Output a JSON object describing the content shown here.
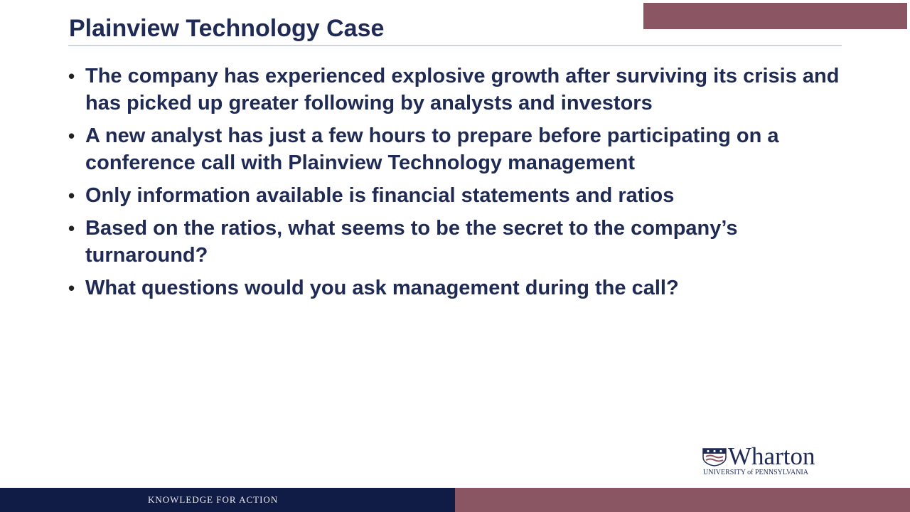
{
  "slide": {
    "title": "Plainview Technology Case",
    "bullets": [
      "The company has experienced explosive growth after surviving its crisis and has picked up greater following by analysts and investors",
      "A new analyst has just a few hours to prepare before participating on a conference call with Plainview Technology management",
      "Only information available is financial statements and ratios",
      "Based on the ratios, what seems to be the secret to the company’s turnaround?",
      "What questions would you ask management during the call?"
    ]
  },
  "logo": {
    "name": "Wharton",
    "subtitle": "UNIVERSITY of PENNSYLVANIA"
  },
  "footer": {
    "tagline": "KNOWLEDGE FOR ACTION"
  },
  "colors": {
    "navy": "#101c46",
    "title_text": "#1f2a55",
    "maroon": "#8b5663"
  }
}
